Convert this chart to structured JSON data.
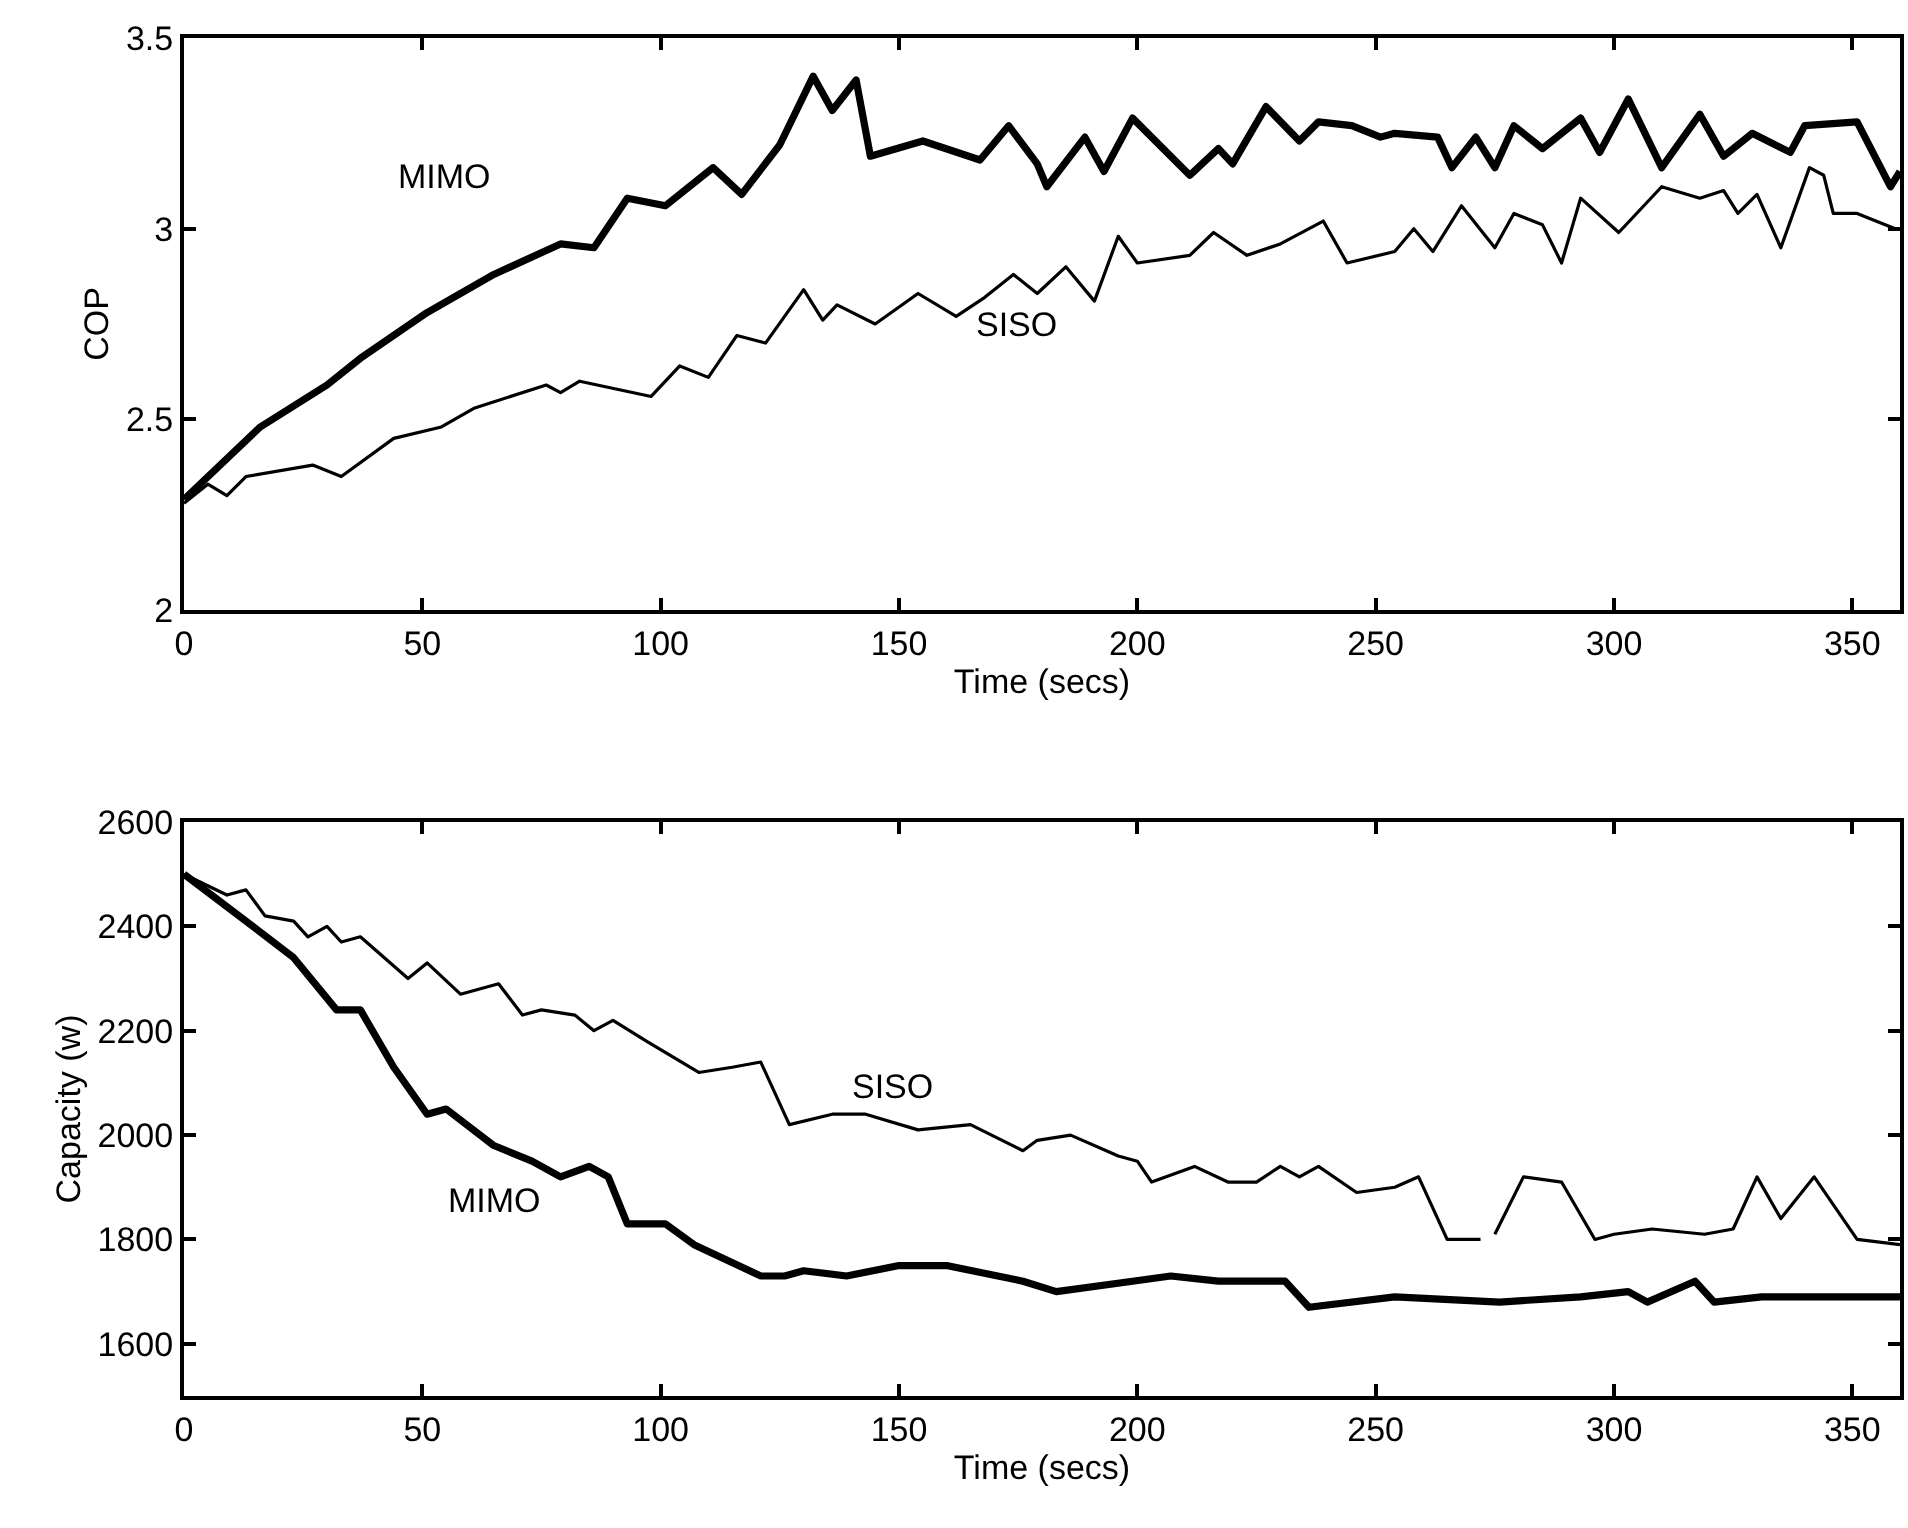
{
  "chart_data": [
    {
      "type": "line",
      "xlabel": "Time (secs)",
      "ylabel": "COP",
      "xlim": [
        0,
        360
      ],
      "xticks": [
        0,
        50,
        100,
        150,
        200,
        250,
        300,
        350
      ],
      "ylim": [
        2,
        3.5
      ],
      "yticks": [
        2,
        2.5,
        3,
        3.5
      ],
      "grid": false,
      "legend": false,
      "line_style": "solid",
      "marker": "none",
      "series": [
        {
          "name": "MIMO",
          "color": "#000000",
          "x": [
            0,
            16,
            30,
            37,
            51,
            65,
            79,
            86,
            93,
            101,
            111,
            117,
            125,
            132,
            136,
            141,
            144,
            155,
            167,
            173,
            179,
            181,
            189,
            193,
            199,
            211,
            217,
            220,
            227,
            234,
            238,
            245,
            251,
            254,
            263,
            266,
            271,
            275,
            279,
            285,
            293,
            297,
            303,
            310,
            318,
            323,
            329,
            337,
            340,
            351,
            358,
            360
          ],
          "values": [
            2.29,
            2.48,
            2.59,
            2.66,
            2.78,
            2.88,
            2.96,
            2.95,
            3.08,
            3.06,
            3.16,
            3.09,
            3.22,
            3.4,
            3.31,
            3.39,
            3.19,
            3.23,
            3.18,
            3.27,
            3.17,
            3.11,
            3.24,
            3.15,
            3.29,
            3.14,
            3.21,
            3.17,
            3.32,
            3.23,
            3.28,
            3.27,
            3.24,
            3.25,
            3.24,
            3.16,
            3.24,
            3.16,
            3.27,
            3.21,
            3.29,
            3.2,
            3.34,
            3.16,
            3.3,
            3.19,
            3.25,
            3.2,
            3.27,
            3.28,
            3.11,
            3.15
          ]
        },
        {
          "name": "SISO",
          "color": "#000000",
          "x": [
            0,
            5,
            9,
            13,
            27,
            33,
            44,
            54,
            61,
            76,
            79,
            83,
            98,
            104,
            110,
            116,
            122,
            130,
            134,
            137,
            145,
            154,
            162,
            168,
            174,
            179,
            185,
            191,
            196,
            200,
            211,
            216,
            223,
            230,
            239,
            244,
            254,
            258,
            262,
            268,
            275,
            279,
            285,
            289,
            293,
            301,
            310,
            318,
            323,
            326,
            330,
            335,
            341,
            344,
            346,
            351,
            359
          ],
          "values": [
            2.28,
            2.33,
            2.3,
            2.35,
            2.38,
            2.35,
            2.45,
            2.48,
            2.53,
            2.59,
            2.57,
            2.6,
            2.56,
            2.64,
            2.61,
            2.72,
            2.7,
            2.84,
            2.76,
            2.8,
            2.75,
            2.83,
            2.77,
            2.82,
            2.88,
            2.83,
            2.9,
            2.81,
            2.98,
            2.91,
            2.93,
            2.99,
            2.93,
            2.96,
            3.02,
            2.91,
            2.94,
            3,
            2.94,
            3.06,
            2.95,
            3.04,
            3.01,
            2.91,
            3.08,
            2.99,
            3.11,
            3.08,
            3.1,
            3.04,
            3.09,
            2.95,
            3.16,
            3.14,
            3.04,
            3.04,
            3
          ]
        }
      ]
    },
    {
      "type": "line",
      "xlabel": "Time (secs)",
      "ylabel": "Capacity (w)",
      "xlim": [
        0,
        360
      ],
      "xticks": [
        0,
        50,
        100,
        150,
        200,
        250,
        300,
        350
      ],
      "ylim": [
        1500,
        2600
      ],
      "yticks": [
        1600,
        1800,
        2000,
        2200,
        2400,
        2600
      ],
      "grid": false,
      "legend": false,
      "line_style": "solid",
      "marker": "none",
      "series": [
        {
          "name": "MIMO",
          "color": "#000000",
          "x": [
            0,
            13,
            23,
            32,
            37,
            44,
            51,
            55,
            65,
            73,
            79,
            85,
            89,
            93,
            101,
            107,
            121,
            126,
            130,
            139,
            150,
            160,
            176,
            183,
            199,
            207,
            217,
            231,
            236,
            254,
            276,
            293,
            303,
            307,
            317,
            321,
            331,
            346,
            360
          ],
          "values": [
            2500,
            2410,
            2340,
            2240,
            2240,
            2130,
            2040,
            2050,
            1980,
            1950,
            1920,
            1940,
            1920,
            1830,
            1830,
            1790,
            1730,
            1730,
            1740,
            1730,
            1750,
            1750,
            1720,
            1700,
            1720,
            1730,
            1720,
            1720,
            1670,
            1690,
            1680,
            1690,
            1700,
            1680,
            1720,
            1680,
            1690,
            1690,
            1690
          ]
        },
        {
          "name": "SISO",
          "color": "#000000",
          "x": [
            0,
            9,
            13,
            17,
            23,
            26,
            30,
            33,
            37,
            47,
            51,
            58,
            66,
            71,
            75,
            82,
            86,
            90,
            97,
            108,
            115,
            121,
            127,
            136,
            143,
            154,
            165,
            176,
            179,
            186,
            196,
            200,
            203,
            212,
            219,
            225,
            230,
            234,
            238,
            246,
            254,
            259,
            265,
            272,
            273,
            275,
            281,
            289,
            296,
            300,
            308,
            319,
            325,
            330,
            335,
            342,
            351,
            360
          ],
          "values": [
            2500,
            2460,
            2470,
            2420,
            2410,
            2380,
            2400,
            2370,
            2380,
            2300,
            2330,
            2270,
            2290,
            2230,
            2240,
            2230,
            2200,
            2220,
            2180,
            2120,
            2130,
            2140,
            2020,
            2040,
            2040,
            2010,
            2020,
            1970,
            1990,
            2000,
            1960,
            1950,
            1910,
            1940,
            1910,
            1910,
            1940,
            1920,
            1940,
            1890,
            1900,
            1920,
            1800,
            1800,
            null,
            1810,
            1920,
            1910,
            1800,
            1810,
            1820,
            1810,
            1820,
            1920,
            1840,
            1920,
            1800,
            1790
          ]
        }
      ]
    }
  ]
}
